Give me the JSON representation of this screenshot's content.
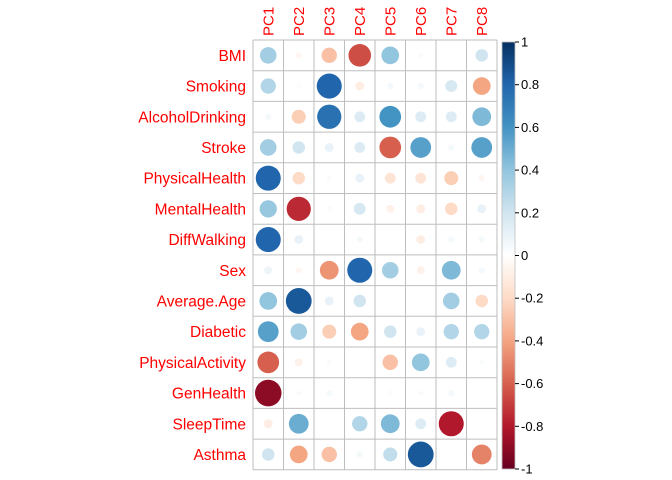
{
  "chart_data": {
    "type": "heatmap",
    "title": "",
    "columns": [
      "PC1",
      "PC2",
      "PC3",
      "PC4",
      "PC5",
      "PC6",
      "PC7",
      "PC8"
    ],
    "rows": [
      "BMI",
      "Smoking",
      "AlcoholDrinking",
      "Stroke",
      "PhysicalHealth",
      "MentalHealth",
      "DiffWalking",
      "Sex",
      "Average.Age",
      "Diabetic",
      "PhysicalActivity",
      "GenHealth",
      "SleepTime",
      "Asthma"
    ],
    "values": [
      [
        0.35,
        -0.05,
        -0.3,
        -0.65,
        0.4,
        0.03,
        0.0,
        0.2
      ],
      [
        0.3,
        0.02,
        0.8,
        -0.1,
        0.05,
        0.05,
        0.18,
        -0.4
      ],
      [
        0.05,
        -0.25,
        0.75,
        0.15,
        0.6,
        0.15,
        0.15,
        0.45
      ],
      [
        0.35,
        0.2,
        0.1,
        0.15,
        -0.6,
        0.55,
        0.05,
        0.55
      ],
      [
        0.8,
        -0.2,
        0.03,
        0.1,
        -0.15,
        -0.15,
        -0.25,
        -0.05
      ],
      [
        0.38,
        -0.75,
        0.03,
        0.18,
        -0.08,
        -0.1,
        -0.2,
        0.1
      ],
      [
        0.8,
        0.1,
        0.0,
        0.05,
        0.0,
        -0.1,
        0.05,
        0.05
      ],
      [
        0.08,
        -0.05,
        -0.45,
        0.8,
        0.35,
        -0.08,
        0.45,
        0.05
      ],
      [
        0.4,
        0.85,
        0.1,
        0.2,
        0.0,
        0.0,
        0.35,
        -0.2
      ],
      [
        0.55,
        0.35,
        -0.25,
        -0.4,
        0.2,
        0.1,
        0.3,
        0.3
      ],
      [
        -0.6,
        -0.08,
        0.03,
        0.0,
        -0.3,
        0.4,
        0.15,
        0.03
      ],
      [
        -0.9,
        0.03,
        0.05,
        0.0,
        0.03,
        0.03,
        0.05,
        0.0
      ],
      [
        -0.1,
        0.5,
        0.0,
        0.3,
        0.45,
        0.15,
        -0.8,
        0.0
      ],
      [
        0.2,
        -0.4,
        -0.3,
        0.05,
        0.25,
        0.85,
        0.0,
        -0.5
      ]
    ],
    "color_scale": {
      "min": -1,
      "max": 1,
      "ticks": [
        1,
        0.8,
        0.6,
        0.4,
        0.2,
        0,
        -0.2,
        -0.4,
        -0.6,
        -0.8,
        -1
      ],
      "tick_labels": [
        "1",
        "0.8",
        "0.6",
        "0.4",
        "0.2",
        "0",
        "-0.2",
        "-0.4",
        "-0.6",
        "-0.8",
        "-1"
      ],
      "colors": [
        "#67001f",
        "#b2182b",
        "#d6604d",
        "#f4a582",
        "#fddbc7",
        "#ffffff",
        "#d1e5f0",
        "#92c5de",
        "#4393c3",
        "#2166ac",
        "#053061"
      ]
    },
    "label_color": "#ff0000",
    "grid_color": "#bebebe",
    "grid": true,
    "legend_placement": "right"
  }
}
